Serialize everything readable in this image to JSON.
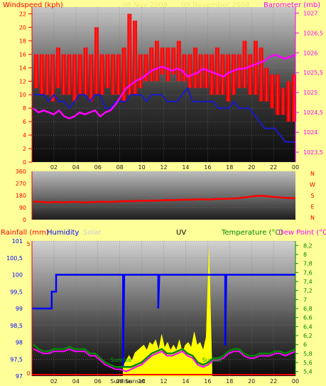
{
  "colors": {
    "bg": "#ffff99",
    "wind": "#ff0000",
    "gust": "#1a1acc",
    "baro": "#ff00ff",
    "dir": "#ff0000",
    "humidity": "#0000ff",
    "rain": "#ff0000",
    "uv": "#ffff00",
    "temp": "#008800",
    "dew": "#ff00ff",
    "solar": "#cccccc"
  },
  "chart_data": [
    {
      "type": "line",
      "title": "Windspeed (kph)",
      "title_right": "Barometer (mb)",
      "title_faint": "08 Nov 2008 .... 09 November 2008",
      "x_ticks": [
        "02",
        "04",
        "06",
        "08",
        "10",
        "12",
        "14",
        "16",
        "18",
        "20",
        "22",
        "00"
      ],
      "y_left_ticks": [
        "0",
        "2",
        "4",
        "6",
        "8",
        "10",
        "12",
        "14",
        "16",
        "18",
        "20",
        "22"
      ],
      "y_right_ticks": [
        "1023,5",
        "1024",
        "1024,5",
        "1025",
        "1025,5",
        "1026",
        "1026,5",
        "1027"
      ],
      "ylim_left": [
        0,
        23
      ],
      "ylim_right": [
        1023.25,
        1027.15
      ],
      "series": [
        {
          "name": "Windspeed",
          "axis": "left",
          "role": "wind_band",
          "values_low": [
            11,
            10,
            10,
            9,
            11,
            10,
            10,
            9,
            10,
            10,
            9,
            10,
            10,
            11,
            10,
            10,
            9,
            10,
            10,
            11,
            12,
            12,
            12,
            13,
            12,
            13,
            12,
            12,
            11,
            11,
            11,
            11,
            10,
            10,
            10,
            9,
            10,
            11,
            11,
            10,
            10,
            9,
            9,
            8,
            7,
            7,
            6,
            6
          ],
          "values_high": [
            16,
            16,
            16,
            16,
            17,
            16,
            16,
            16,
            16,
            17,
            16,
            20,
            16,
            16,
            16,
            16,
            17,
            22,
            21,
            16,
            16,
            17,
            18,
            17,
            17,
            17,
            18,
            16,
            16,
            17,
            16,
            16,
            16,
            17,
            16,
            16,
            16,
            16,
            18,
            16,
            18,
            17,
            14,
            13,
            13,
            11,
            12,
            13
          ]
        },
        {
          "name": "Gust",
          "axis": "left",
          "values": [
            10,
            10,
            10,
            9,
            10,
            9,
            9,
            8,
            9,
            10,
            10,
            9,
            10,
            10,
            8,
            8,
            9,
            9,
            9,
            10,
            10,
            10,
            9,
            10,
            10,
            10,
            9,
            9,
            9,
            10,
            11,
            9,
            9,
            9,
            9,
            9,
            8,
            8,
            8,
            9,
            8,
            8,
            8,
            7,
            6,
            5,
            5,
            5,
            4,
            3,
            3,
            3
          ]
        },
        {
          "name": "Barometer",
          "axis": "right",
          "values": [
            1024.6,
            1024.5,
            1024.55,
            1024.5,
            1024.45,
            1024.55,
            1024.4,
            1024.35,
            1024.4,
            1024.5,
            1024.45,
            1024.5,
            1024.55,
            1024.4,
            1024.5,
            1024.55,
            1024.7,
            1024.9,
            1025.1,
            1025.2,
            1025.3,
            1025.35,
            1025.45,
            1025.55,
            1025.6,
            1025.65,
            1025.6,
            1025.55,
            1025.6,
            1025.55,
            1025.4,
            1025.45,
            1025.5,
            1025.6,
            1025.55,
            1025.5,
            1025.45,
            1025.4,
            1025.5,
            1025.55,
            1025.6,
            1025.6,
            1025.65,
            1025.7,
            1025.75,
            1025.8,
            1025.9,
            1025.95,
            1025.9,
            1025.85,
            1025.9,
            1025.95
          ]
        }
      ]
    },
    {
      "type": "line",
      "title": "Wind direction",
      "y_ticks": [
        "0",
        "90",
        "180",
        "270",
        "360"
      ],
      "ylim": [
        0,
        360
      ],
      "right_labels": [
        "N",
        "W",
        "S",
        "E",
        "N"
      ],
      "series": [
        {
          "name": "Direction",
          "values": [
            135,
            133,
            130,
            128,
            132,
            130,
            128,
            131,
            133,
            130,
            128,
            130,
            132,
            134,
            133,
            132,
            134,
            136,
            138,
            137,
            140,
            142,
            140,
            143,
            141,
            144,
            146,
            145,
            147,
            148,
            150,
            149,
            151,
            152,
            150,
            153,
            155,
            154,
            156,
            158,
            160,
            165,
            170,
            175,
            178,
            176,
            172,
            168,
            165,
            163,
            161,
            160
          ]
        }
      ]
    },
    {
      "type": "line",
      "titles": {
        "rainfall": "Rainfall (mm)",
        "humidity": "Humidity",
        "solar": "Solar",
        "uv": "UV",
        "temperature": "Temperature (°C)",
        "dewpoint": "Dew Point (°C)"
      },
      "y_left_ticks": [
        "97",
        "97,5",
        "98",
        "98,5",
        "99",
        "99,5",
        "100",
        "100,5",
        "101"
      ],
      "ylim_left": [
        97,
        101
      ],
      "y_rain_ticks": [
        "0",
        "5"
      ],
      "y_right_ticks": [
        "5,4",
        "5,6",
        "5,8",
        "6",
        "6,2",
        "6,4",
        "6,6",
        "6,8",
        "7",
        "7,2",
        "7,4",
        "7,6",
        "7,8",
        "8",
        "8,2"
      ],
      "ylim_right": [
        5.3,
        8.3
      ],
      "x_ticks": [
        "02",
        "04",
        "06",
        "08",
        "10",
        "12",
        "14",
        "16",
        "18",
        "20",
        "22",
        "00"
      ],
      "annotations": [
        "Sunrise",
        "Sunrise",
        "Sunset",
        "Sunset"
      ],
      "series": [
        {
          "name": "Humidity",
          "role": "humidity",
          "points": [
            [
              0,
              99
            ],
            [
              1.8,
              99
            ],
            [
              1.8,
              99.5
            ],
            [
              2.2,
              99.5
            ],
            [
              2.2,
              100
            ],
            [
              8.3,
              100
            ],
            [
              8.3,
              97.3
            ],
            [
              8.4,
              100
            ],
            [
              11.5,
              100
            ],
            [
              11.5,
              99
            ],
            [
              11.6,
              100
            ],
            [
              17.6,
              100
            ],
            [
              17.6,
              97.9
            ],
            [
              17.7,
              100
            ],
            [
              24,
              100
            ]
          ]
        },
        {
          "name": "Temperature",
          "values": [
            6.0,
            5.9,
            5.85,
            5.85,
            5.9,
            5.9,
            5.9,
            5.95,
            5.9,
            5.9,
            5.9,
            5.8,
            5.8,
            5.7,
            5.6,
            5.55,
            5.5,
            5.5,
            5.5,
            5.5,
            5.55,
            5.6,
            5.7,
            5.8,
            5.85,
            5.9,
            5.8,
            5.8,
            5.85,
            5.9,
            5.8,
            5.75,
            5.6,
            5.55,
            5.6,
            5.7,
            5.7,
            5.75,
            5.85,
            5.9,
            5.9,
            5.8,
            5.75,
            5.75,
            5.8,
            5.8,
            5.8,
            5.85,
            5.85,
            5.8,
            5.85,
            5.9
          ]
        },
        {
          "name": "Dew Point",
          "values": [
            5.9,
            5.85,
            5.8,
            5.8,
            5.85,
            5.85,
            5.85,
            5.9,
            5.85,
            5.85,
            5.85,
            5.75,
            5.75,
            5.65,
            5.55,
            5.5,
            5.45,
            5.45,
            5.4,
            5.45,
            5.5,
            5.55,
            5.65,
            5.75,
            5.8,
            5.85,
            5.75,
            5.75,
            5.8,
            5.85,
            5.75,
            5.7,
            5.55,
            5.5,
            5.55,
            5.65,
            5.65,
            5.7,
            5.8,
            5.85,
            5.85,
            5.75,
            5.7,
            5.7,
            5.75,
            5.75,
            5.75,
            5.8,
            5.8,
            5.75,
            5.8,
            5.85
          ]
        },
        {
          "name": "UV",
          "role": "uv_area",
          "x_range": [
            8.3,
            16.4
          ],
          "values": [
            0.4,
            0.6,
            0.8,
            0.6,
            0.9,
            1.0,
            1.1,
            1.2,
            1.0,
            1.3,
            1.2,
            1.4,
            1.0,
            1.6,
            1.1,
            1.3,
            1.0,
            1.2,
            1.0,
            1.4,
            0.9,
            1.2,
            1.3,
            1.1,
            1.7,
            1.2,
            1.3,
            1.0,
            1.5,
            4.9,
            0.3
          ]
        }
      ]
    }
  ]
}
